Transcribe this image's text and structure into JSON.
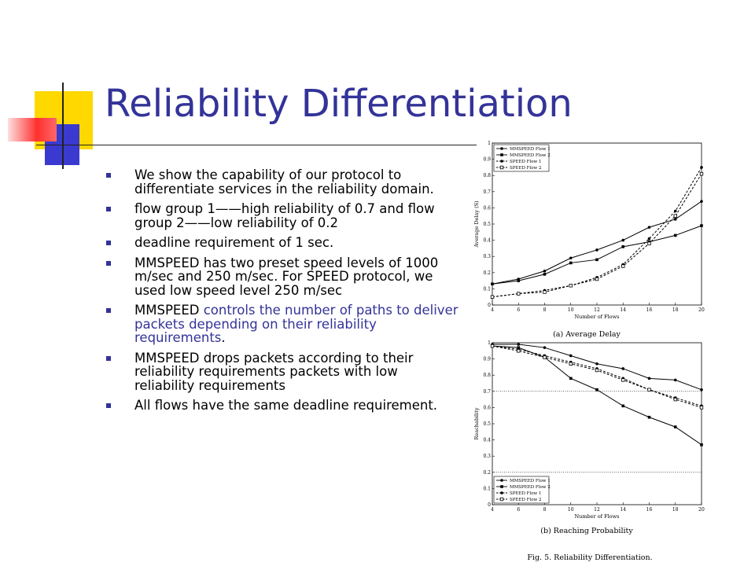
{
  "slide": {
    "title": "Reliability Differentiation",
    "bullets": [
      {
        "text": "We show the capability of our protocol to differentiate services in the reliability domain."
      },
      {
        "text": "flow group 1——high reliability of 0.7 and flow group 2——low reliability of 0.2"
      },
      {
        "text": "deadline requirement of 1 sec."
      },
      {
        "text": "MMSPEED has two preset speed levels of 1000 m/sec and 250 m/sec. For SPEED protocol, we used low speed level 250 m/sec"
      },
      {
        "pre": "MMSPEED ",
        "highlight": "controls the number of paths to deliver packets depending on their reliability requirements",
        "post": "."
      },
      {
        "text": "MMSPEED drops packets according to their reliability requirements packets with low reliability requirements"
      },
      {
        "text": "All flows have the same deadline requirement."
      }
    ],
    "accent_color": "#333399",
    "decor_colors": {
      "yellow": "#ffd800",
      "blue": "#3a3ad0",
      "red": "#ff3030"
    }
  },
  "figure": {
    "caption": "Fig. 5.    Reliability Differentiation."
  },
  "chart_data": [
    {
      "type": "line",
      "caption": "(a) Average Delay",
      "xlabel": "Number of Flows",
      "ylabel": "Average Delay (S)",
      "x": [
        4,
        6,
        8,
        10,
        12,
        14,
        16,
        18,
        20
      ],
      "xlim": [
        4,
        20
      ],
      "ylim": [
        0,
        1
      ],
      "xticks": [
        "4",
        "6",
        "8",
        "10",
        "12",
        "14",
        "16",
        "18",
        "20"
      ],
      "yticks": [
        "0",
        "0.1",
        "0.2",
        "0.3",
        "0.4",
        "0.5",
        "0.6",
        "0.7",
        "0.8",
        "0.9",
        "1"
      ],
      "reference_lines": [
        1.0
      ],
      "legend_position": "top-left",
      "series": [
        {
          "name": "MMSPEED Flow 1",
          "dash": "solid",
          "marker": "dot",
          "values": [
            0.13,
            0.16,
            0.21,
            0.29,
            0.34,
            0.4,
            0.48,
            0.53,
            0.64
          ]
        },
        {
          "name": "MMSPEED Flow 2",
          "dash": "solid",
          "marker": "square-filled",
          "values": [
            0.13,
            0.15,
            0.19,
            0.26,
            0.28,
            0.36,
            0.39,
            0.43,
            0.49
          ]
        },
        {
          "name": "SPEED Flow 1",
          "dash": "dashed",
          "marker": "dot",
          "values": [
            0.05,
            0.07,
            0.09,
            0.12,
            0.17,
            0.25,
            0.41,
            0.58,
            0.85
          ]
        },
        {
          "name": "SPEED Flow 2",
          "dash": "dashed",
          "marker": "square-open",
          "values": [
            0.05,
            0.07,
            0.08,
            0.12,
            0.16,
            0.24,
            0.38,
            0.55,
            0.81
          ]
        }
      ]
    },
    {
      "type": "line",
      "caption": "(b) Reaching Probability",
      "xlabel": "Number of Flows",
      "ylabel": "Reachability",
      "x": [
        4,
        6,
        8,
        10,
        12,
        14,
        16,
        18,
        20
      ],
      "xlim": [
        4,
        20
      ],
      "ylim": [
        0,
        1
      ],
      "xticks": [
        "4",
        "6",
        "8",
        "10",
        "12",
        "14",
        "16",
        "18",
        "20"
      ],
      "yticks": [
        "0",
        "0.1",
        "0.2",
        "0.3",
        "0.4",
        "0.5",
        "0.6",
        "0.7",
        "0.8",
        "0.9",
        "1"
      ],
      "reference_lines": [
        0.7,
        0.2
      ],
      "legend_position": "bottom-left",
      "series": [
        {
          "name": "MMSPEED Flow 1",
          "dash": "solid",
          "marker": "dot",
          "values": [
            0.99,
            0.99,
            0.97,
            0.92,
            0.87,
            0.84,
            0.78,
            0.77,
            0.71
          ]
        },
        {
          "name": "MMSPEED Flow 2",
          "dash": "solid",
          "marker": "square-filled",
          "values": [
            0.98,
            0.97,
            0.91,
            0.78,
            0.71,
            0.61,
            0.54,
            0.48,
            0.37
          ]
        },
        {
          "name": "SPEED Flow 1",
          "dash": "dashed",
          "marker": "dot",
          "values": [
            0.98,
            0.96,
            0.92,
            0.88,
            0.84,
            0.78,
            0.71,
            0.66,
            0.61
          ]
        },
        {
          "name": "SPEED Flow 2",
          "dash": "dashed",
          "marker": "square-open",
          "values": [
            0.98,
            0.95,
            0.91,
            0.87,
            0.83,
            0.77,
            0.71,
            0.65,
            0.6
          ]
        }
      ]
    }
  ]
}
